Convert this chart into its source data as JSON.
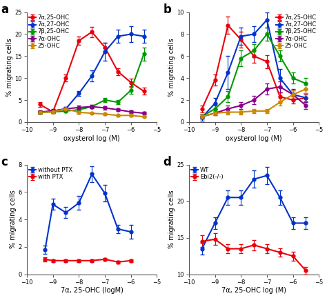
{
  "panel_a": {
    "title": "a",
    "xlabel": "oxysterol log (M)",
    "ylabel": "% migrating cells",
    "ylim": [
      0,
      25
    ],
    "yticks": [
      0,
      5,
      10,
      15,
      20,
      25
    ],
    "xlim": [
      -10,
      -5
    ],
    "xticks": [
      -10,
      -9,
      -8,
      -7,
      -6,
      -5
    ],
    "legend_loc": "upper left",
    "series": [
      {
        "label": "7α,25-OHC",
        "color": "#e8000b",
        "x": [
          -9.5,
          -9,
          -8.5,
          -8,
          -7.5,
          -7,
          -6.5,
          -6,
          -5.5
        ],
        "y": [
          4.0,
          2.3,
          10.0,
          18.5,
          20.5,
          17.0,
          11.5,
          9.0,
          7.0
        ],
        "yerr": [
          0.5,
          0.3,
          0.8,
          1.0,
          1.2,
          1.0,
          0.8,
          0.8,
          0.8
        ]
      },
      {
        "label": "7α,27-OHC",
        "color": "#0033cc",
        "x": [
          -9.5,
          -9,
          -8.5,
          -8,
          -7.5,
          -7,
          -6.5,
          -6,
          -5.5
        ],
        "y": [
          2.2,
          2.5,
          3.0,
          6.5,
          10.5,
          16.0,
          19.5,
          20.0,
          19.5
        ],
        "yerr": [
          0.3,
          0.4,
          0.5,
          0.6,
          1.2,
          2.0,
          1.5,
          1.8,
          1.5
        ]
      },
      {
        "label": "7β,25-OHC",
        "color": "#009900",
        "x": [
          -9.5,
          -9,
          -8.5,
          -8,
          -7.5,
          -7,
          -6.5,
          -6,
          -5.5
        ],
        "y": [
          2.2,
          2.3,
          2.5,
          2.8,
          3.5,
          5.0,
          4.5,
          7.2,
          15.5
        ],
        "yerr": [
          0.3,
          0.3,
          0.3,
          0.3,
          0.4,
          0.5,
          0.5,
          0.8,
          1.5
        ]
      },
      {
        "label": "7α-OHC",
        "color": "#880088",
        "x": [
          -9.5,
          -9,
          -8.5,
          -8,
          -7.5,
          -7,
          -6.5,
          -6,
          -5.5
        ],
        "y": [
          2.3,
          2.5,
          3.0,
          3.3,
          3.5,
          3.2,
          2.8,
          2.3,
          2.0
        ],
        "yerr": [
          0.3,
          0.3,
          0.4,
          0.4,
          0.4,
          0.4,
          0.3,
          0.3,
          0.3
        ]
      },
      {
        "label": "25-OHC",
        "color": "#cc8800",
        "x": [
          -9.5,
          -9,
          -8.5,
          -8,
          -7.5,
          -7,
          -6.5,
          -6,
          -5.5
        ],
        "y": [
          2.2,
          2.3,
          3.0,
          2.2,
          2.0,
          1.8,
          1.5,
          1.5,
          1.2
        ],
        "yerr": [
          0.3,
          0.3,
          0.3,
          0.3,
          0.2,
          0.2,
          0.2,
          0.2,
          0.2
        ]
      }
    ]
  },
  "panel_b": {
    "title": "b",
    "xlabel": "oxysterol log (M)",
    "ylabel": "% migrating cells",
    "ylim": [
      0,
      10
    ],
    "yticks": [
      0,
      2,
      4,
      6,
      8,
      10
    ],
    "xlim": [
      -10,
      -5
    ],
    "xticks": [
      -10,
      -9,
      -8,
      -7,
      -6,
      -5
    ],
    "legend_loc": "upper right",
    "series": [
      {
        "label": "7α,25-OHC",
        "color": "#e8000b",
        "x": [
          -9.5,
          -9,
          -8.5,
          -8,
          -7.5,
          -7,
          -6.5,
          -6,
          -5.5
        ],
        "y": [
          1.2,
          3.8,
          8.8,
          7.5,
          6.0,
          5.5,
          2.3,
          2.0,
          2.2
        ],
        "yerr": [
          0.3,
          0.5,
          0.8,
          0.7,
          0.6,
          0.6,
          0.4,
          0.3,
          0.3
        ]
      },
      {
        "label": "7α,27-OHC",
        "color": "#0033cc",
        "x": [
          -9.5,
          -9,
          -8.5,
          -8,
          -7.5,
          -7,
          -6.5,
          -6,
          -5.5
        ],
        "y": [
          0.4,
          1.7,
          4.5,
          7.8,
          8.0,
          9.3,
          4.0,
          2.5,
          2.2
        ],
        "yerr": [
          0.3,
          0.5,
          1.5,
          0.8,
          0.7,
          0.7,
          0.8,
          0.5,
          0.4
        ]
      },
      {
        "label": "7β,25-OHC",
        "color": "#009900",
        "x": [
          -9.5,
          -9,
          -8.5,
          -8,
          -7.5,
          -7,
          -6.5,
          -6,
          -5.5
        ],
        "y": [
          0.5,
          1.2,
          2.3,
          5.8,
          6.5,
          8.0,
          6.0,
          4.0,
          3.5
        ],
        "yerr": [
          0.2,
          0.3,
          0.5,
          0.7,
          0.6,
          0.6,
          0.5,
          0.5,
          0.5
        ]
      },
      {
        "label": "7α-OHC",
        "color": "#880088",
        "x": [
          -9.5,
          -9,
          -8.5,
          -8,
          -7.5,
          -7,
          -6.5,
          -6,
          -5.5
        ],
        "y": [
          0.5,
          0.8,
          1.2,
          1.5,
          2.0,
          3.0,
          3.2,
          2.5,
          1.5
        ],
        "yerr": [
          0.2,
          0.2,
          0.3,
          0.3,
          0.4,
          0.5,
          0.5,
          0.4,
          0.3
        ]
      },
      {
        "label": "25-OHC",
        "color": "#cc8800",
        "x": [
          -9.5,
          -9,
          -8.5,
          -8,
          -7.5,
          -7,
          -6.5,
          -6,
          -5.5
        ],
        "y": [
          0.5,
          0.8,
          0.9,
          0.9,
          1.0,
          1.0,
          1.8,
          2.5,
          3.0
        ],
        "yerr": [
          0.2,
          0.2,
          0.2,
          0.2,
          0.2,
          0.2,
          0.3,
          0.4,
          0.4
        ]
      }
    ]
  },
  "panel_c": {
    "title": "c",
    "xlabel": "7α, 25-OHC (logM)",
    "ylabel": "% migrating cells",
    "ylim": [
      0,
      8
    ],
    "yticks": [
      0,
      2,
      4,
      6,
      8
    ],
    "xlim": [
      -10,
      -5
    ],
    "xticks": [
      -10,
      -9,
      -8,
      -7,
      -6,
      -5
    ],
    "legend_loc": "upper left",
    "series": [
      {
        "label": "without PTX",
        "color": "#0033cc",
        "x": [
          -9.3,
          -9,
          -8.5,
          -8,
          -7.5,
          -7,
          -6.5,
          -6
        ],
        "y": [
          1.8,
          5.1,
          4.5,
          5.2,
          7.3,
          5.9,
          3.3,
          3.1
        ],
        "yerr": [
          0.3,
          0.4,
          0.4,
          0.5,
          0.6,
          0.6,
          0.3,
          0.5
        ]
      },
      {
        "label": "with PTX",
        "color": "#e8000b",
        "x": [
          -9.3,
          -9,
          -8.5,
          -8,
          -7.5,
          -7,
          -6.5,
          -6
        ],
        "y": [
          1.1,
          1.0,
          1.0,
          1.0,
          1.0,
          1.1,
          0.9,
          1.0
        ],
        "yerr": [
          0.15,
          0.1,
          0.1,
          0.1,
          0.1,
          0.1,
          0.1,
          0.1
        ]
      }
    ]
  },
  "panel_d": {
    "title": "d",
    "xlabel": "7α, 25-OHC log (M)",
    "ylabel": "% migrating cells",
    "ylim": [
      10,
      25
    ],
    "yticks": [
      10,
      15,
      20,
      25
    ],
    "xlim": [
      -10,
      -5
    ],
    "xticks": [
      -10,
      -9,
      -8,
      -7,
      -6,
      -5
    ],
    "legend_loc": "upper left",
    "series": [
      {
        "label": "WT",
        "color": "#0033cc",
        "x": [
          -9.5,
          -9,
          -8.5,
          -8,
          -7.5,
          -7,
          -6.5,
          -6,
          -5.5
        ],
        "y": [
          13.5,
          17.0,
          20.5,
          20.5,
          23.0,
          23.5,
          20.5,
          17.0,
          17.0
        ],
        "yerr": [
          0.8,
          0.8,
          1.0,
          1.0,
          1.2,
          1.2,
          1.0,
          0.8,
          0.8
        ]
      },
      {
        "label": "Ebi2(-/-)",
        "color": "#e8000b",
        "x": [
          -9.5,
          -9,
          -8.5,
          -8,
          -7.5,
          -7,
          -6.5,
          -6,
          -5.5
        ],
        "y": [
          14.5,
          14.8,
          13.5,
          13.5,
          14.0,
          13.5,
          13.0,
          12.5,
          10.5
        ],
        "yerr": [
          0.8,
          0.8,
          0.6,
          0.6,
          0.7,
          0.6,
          0.6,
          0.6,
          0.5
        ]
      }
    ]
  },
  "bg_color": "#ffffff",
  "marker": "o",
  "markersize": 3.5,
  "linewidth": 1.5,
  "capsize": 2,
  "elinewidth": 0.8,
  "legend_fontsize": 6,
  "tick_fontsize": 6,
  "label_fontsize": 7
}
